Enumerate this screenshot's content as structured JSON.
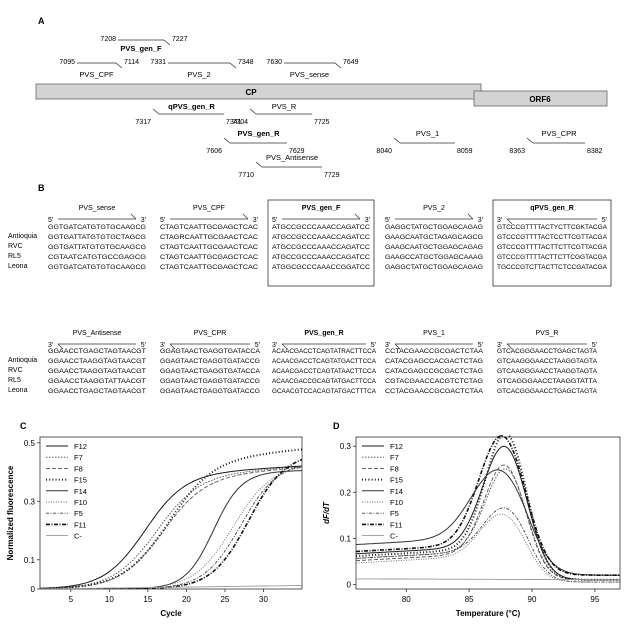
{
  "panels": {
    "A": "A",
    "B": "B",
    "C": "C",
    "D": "D"
  },
  "panel_a": {
    "genes": [
      "CP",
      "ORF6"
    ],
    "primers_top": [
      {
        "name": "PVS_gen_F",
        "bold": true,
        "start": "7208",
        "end": "7227"
      },
      {
        "name": "PVS_CPF",
        "bold": false,
        "start": "7095",
        "end": "7114"
      },
      {
        "name": "PVS_2",
        "bold": false,
        "start": "7331",
        "end": "7348"
      },
      {
        "name": "PVS_sense",
        "bold": false,
        "start": "7630",
        "end": "7649"
      }
    ],
    "primers_bottom": [
      {
        "name": "qPVS_gen_R",
        "bold": true,
        "start": "7317",
        "end": "7341"
      },
      {
        "name": "PVS_R",
        "bold": false,
        "start": "7704",
        "end": "7725"
      },
      {
        "name": "PVS_gen_R",
        "bold": true,
        "start": "7606",
        "end": "7629"
      },
      {
        "name": "PVS_Antisense",
        "bold": false,
        "start": "7710",
        "end": "7729"
      },
      {
        "name": "PVS_1",
        "bold": false,
        "start": "8040",
        "end": "8059"
      },
      {
        "name": "PVS_CPR",
        "bold": false,
        "start": "8363",
        "end": "8382"
      }
    ]
  },
  "panel_b": {
    "isolates": [
      "Antioquia",
      "RVC",
      "RL5",
      "Leona"
    ],
    "row1": [
      {
        "name": "PVS_sense",
        "bold": false,
        "boxed": false,
        "dir": "fwd",
        "left_end": "5'",
        "right_end": "3'",
        "seqs": [
          "GGTGATCATGTGTGCAAGCG",
          "GGTGATTATGTGTGCTAGCG",
          "GGTGATTATGTGTGCAAGCG",
          "CGTAATCATGTGCCGAGCG",
          "GGTGATCATGTGTGCAAGCG"
        ]
      },
      {
        "name": "PVS_CPF",
        "bold": false,
        "boxed": false,
        "dir": "fwd",
        "left_end": "5'",
        "right_end": "3'",
        "seqs": [
          "CTAGTCAATTGCGAGCTCAC",
          "CTAGRCAATTGCGAACTCAC",
          "CTAGTCAATTGCGAACTCAC",
          "CTAGTCAATTGCGAGCTCAC",
          "CTAGTCAATTGCGAGCTCAC"
        ]
      },
      {
        "name": "PVS_gen_F",
        "bold": true,
        "boxed": true,
        "dir": "fwd",
        "left_end": "5'",
        "right_end": "3'",
        "seqs": [
          "ATGCCGCCCAAACCAGATCC",
          "ATGCCGCCCAAACCAGATCC",
          "ATGCCGCCCAAACCAGATCC",
          "ATGCCGCCCAAACCAGATCC",
          "ATGGCGCCCAAACCGGATCC"
        ]
      },
      {
        "name": "PVS_2",
        "bold": false,
        "boxed": false,
        "dir": "fwd",
        "left_end": "5'",
        "right_end": "3'",
        "seqs": [
          "GAGGCTATGCTGGAGCAGAG",
          "GAAGCAATGCTAGAGCAGCG",
          "GAAGCAATGCTGGAGCAGAG",
          "GAAGCCATGCTGGAGCAAAG",
          "GAGGCTATGCTGGAGCAGAG"
        ]
      },
      {
        "name": "qPVS_gen_R",
        "bold": true,
        "boxed": true,
        "dir": "rev",
        "left_end": "3'",
        "right_end": "5'",
        "seqs": [
          "GTCCCGTTTTACTYCTTCGKTACGA",
          "GTCCCGTTTTACTCCTTCGTTACGA",
          "GTCCCGTTTTACTTCTTCGTTACGA",
          "GTCCCGTTTTACTTCTTCGGTACGA",
          "TGCCCGTCTTACTTCTCCGATACGA"
        ]
      }
    ],
    "row2": [
      {
        "name": "PVS_Antisense",
        "bold": false,
        "boxed": false,
        "dir": "rev",
        "left_end": "3'",
        "right_end": "5'",
        "seqs": [
          "GGAACCTGAGCTAGTAACGT",
          "GGAACCTAAGGTAGTAACGT",
          "GGAACCTAAGGTAGTAACGT",
          "GGAACCTAAGGTATTAACGT",
          "GGAACCTGAGCTAGTAACGT"
        ]
      },
      {
        "name": "PVS_CPR",
        "bold": false,
        "boxed": false,
        "dir": "rev",
        "left_end": "3'",
        "right_end": "5'",
        "seqs": [
          "GGAGTAACTGAGGTGATACCA",
          "GGAGTAACTGAGGTGATACCG",
          "GGAGTAACTGAGGTGATACCA",
          "GGAGTAACTGAGGTGATACCG",
          "GGAGTAACTGAGGTGATACCG"
        ]
      },
      {
        "name": "PVS_gen_R",
        "bold": true,
        "boxed": false,
        "dir": "rev",
        "left_end": "3'",
        "right_end": "5'",
        "seqs": [
          "ACAACGACCTCAGTATRACTTCCA",
          "ACAACGACCTCAGTATGACTTCCA",
          "ACAACGACCTCAGTATAACTTCCA",
          "ACAACGACCGCAGTATGACTTCCA",
          "GCAACGTCCACAGTATGACTTTCA"
        ]
      },
      {
        "name": "PVS_1",
        "bold": false,
        "boxed": false,
        "dir": "rev",
        "left_end": "3'",
        "right_end": "5'",
        "seqs": [
          "CCTACGAACCGCGACTCTAA",
          "CATACGAGCCACGACTCTAG",
          "CATACGAGCCGCGACTCTAG",
          "CGTACGAACCACGTCTCTAG",
          "CCTACGAACCGCGACTCTAA"
        ]
      },
      {
        "name": "PVS_R",
        "bold": false,
        "boxed": false,
        "dir": "rev",
        "left_end": "3'",
        "right_end": "5'",
        "seqs": [
          "GTCACGGGAACCTGAGCTAGTA",
          "GTCAAGGGAACCTAAGGTAGTA",
          "GTCAAGGGAACCTAAGGTAGTA",
          "GTCAGGGAACCTAAGGTATTA",
          "GTCACGGGAACCTGAGCTAGTA"
        ]
      }
    ]
  },
  "legend_labels": [
    "F12",
    "F7",
    "F8",
    "F15",
    "F14",
    "F10",
    "F5",
    "F11",
    "C-"
  ],
  "series_colors": {
    "F12": "#1a1a1a",
    "F7": "#4a4a4a",
    "F8": "#555555",
    "F15": "#1a1a1a",
    "F14": "#333333",
    "F10": "#666666",
    "F5": "#444444",
    "F11": "#111111",
    "C-": "#9a9a9a"
  },
  "chart_data": [
    {
      "panel": "C",
      "type": "line",
      "xlabel": "Cycle",
      "ylabel": "Normalized fluorescence",
      "xlim": [
        1,
        35
      ],
      "ylim": [
        0,
        0.52
      ],
      "xticks": [
        5,
        10,
        15,
        20,
        25,
        30
      ],
      "yticks": [
        0,
        0.1,
        0.3,
        0.5
      ],
      "ytick_labels": [
        "0",
        "0.1",
        "0.3",
        "0.5"
      ],
      "legend": "top-left",
      "grid": false,
      "series": [
        {
          "name": "F12",
          "type": "sigmoid",
          "top": 0.39,
          "mid": 14.5,
          "k": 0.38,
          "slope": 0.0015
        },
        {
          "name": "F7",
          "type": "sigmoid",
          "top": 0.385,
          "mid": 16.0,
          "k": 0.36,
          "slope": 0.0018
        },
        {
          "name": "F8",
          "type": "sigmoid",
          "top": 0.38,
          "mid": 16.8,
          "k": 0.36,
          "slope": 0.002
        },
        {
          "name": "F15",
          "type": "sigmoid",
          "top": 0.44,
          "mid": 17.5,
          "k": 0.34,
          "slope": 0.0022
        },
        {
          "name": "F14",
          "type": "sigmoid",
          "top": 0.4,
          "mid": 23.5,
          "k": 0.55,
          "slope": 0.0005
        },
        {
          "name": "F10",
          "type": "sigmoid",
          "top": 0.42,
          "mid": 26.0,
          "k": 0.4,
          "slope": 0.0008
        },
        {
          "name": "F5",
          "type": "sigmoid",
          "top": 0.43,
          "mid": 27.0,
          "k": 0.42,
          "slope": 0.0008
        },
        {
          "name": "F11",
          "type": "sigmoid",
          "top": 0.46,
          "mid": 28.0,
          "k": 0.42,
          "slope": 0.0008
        },
        {
          "name": "C-",
          "type": "flat",
          "values": [
            0.0,
            0.012
          ]
        }
      ]
    },
    {
      "panel": "D",
      "type": "line",
      "xlabel": "Temperature (°C)",
      "ylabel": "dF/dT",
      "xlim": [
        76,
        97
      ],
      "ylim": [
        -0.01,
        0.32
      ],
      "xticks": [
        80,
        85,
        90,
        95
      ],
      "yticks": [
        0,
        0.1,
        0.2,
        0.3
      ],
      "ytick_labels": [
        "0",
        "0.1",
        "0.2",
        "0.3"
      ],
      "legend": "top-left",
      "grid": false,
      "series": [
        {
          "name": "F12",
          "type": "peak",
          "base": 0.08,
          "end": 0.01,
          "peak": 0.27,
          "center": 87.8,
          "width": 1.7
        },
        {
          "name": "F7",
          "type": "peak",
          "base": 0.07,
          "end": 0.01,
          "peak": 0.225,
          "center": 87.9,
          "width": 1.6
        },
        {
          "name": "F8",
          "type": "peak",
          "base": 0.065,
          "end": 0.01,
          "peak": 0.235,
          "center": 87.8,
          "width": 1.6
        },
        {
          "name": "F15",
          "type": "peak",
          "base": 0.075,
          "end": 0.01,
          "peak": 0.3,
          "center": 87.9,
          "width": 1.6
        },
        {
          "name": "F14",
          "type": "peak",
          "base": 0.1,
          "end": 0.02,
          "peak": 0.21,
          "center": 87.3,
          "width": 2.1
        },
        {
          "name": "F10",
          "type": "peak",
          "base": 0.06,
          "end": 0.005,
          "peak": 0.13,
          "center": 87.6,
          "width": 1.7
        },
        {
          "name": "F5",
          "type": "peak",
          "base": 0.07,
          "end": 0.005,
          "peak": 0.14,
          "center": 87.8,
          "width": 1.7
        },
        {
          "name": "F11",
          "type": "peak",
          "base": 0.085,
          "end": 0.02,
          "peak": 0.29,
          "center": 87.6,
          "width": 1.8
        },
        {
          "name": "C-",
          "type": "flat",
          "values": [
            0.012,
            0.01
          ]
        }
      ]
    }
  ]
}
